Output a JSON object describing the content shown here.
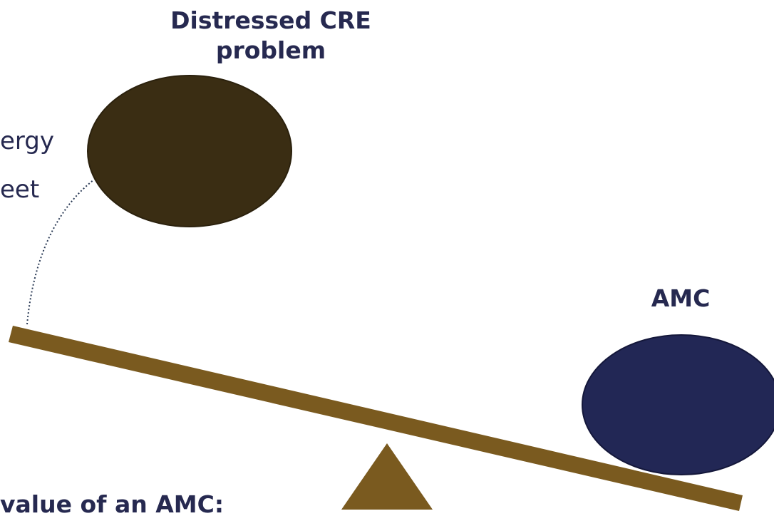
{
  "labels": {
    "top": "Distressed CRE\nproblem",
    "amc": "AMC",
    "fragment_line1": "ergy",
    "fragment_line2": "eet",
    "fragment_bottom": "value of an AMC:"
  },
  "colors": {
    "text": "#262950",
    "problem_weight": "#3a2d13",
    "amc_weight": "#222755",
    "beam": "#7a5a1f",
    "fulcrum": "#7a5a1f",
    "connector": "#2a3a55"
  }
}
